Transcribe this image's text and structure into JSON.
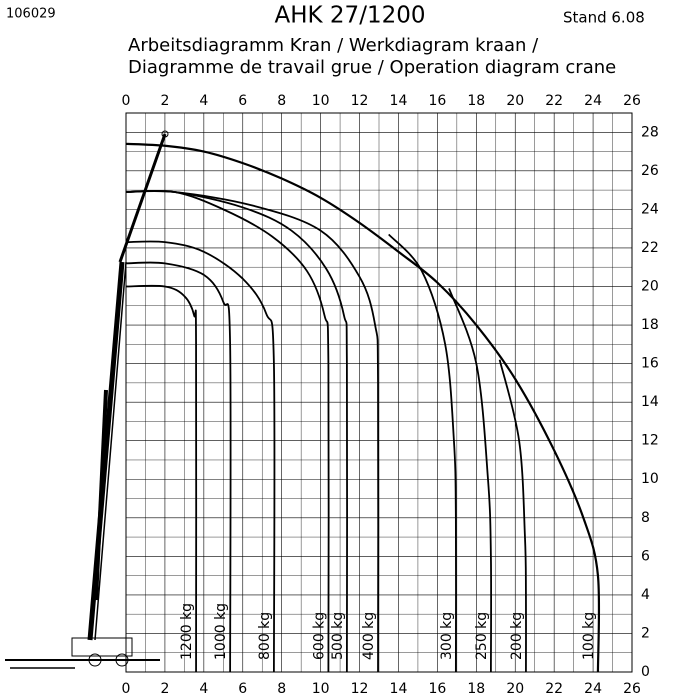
{
  "chart_data": {
    "type": "line",
    "code": "106029",
    "title": "AHK 27/1200",
    "stand": "Stand 6.08",
    "subtitle": [
      "Arbeitsdiagramm Kran / Werkdiagram kraan /",
      "Diagramme de travail grue / Operation diagram crane"
    ],
    "xlim": [
      0,
      26
    ],
    "ylim": [
      0,
      29
    ],
    "xticks": [
      0,
      2,
      4,
      6,
      8,
      10,
      12,
      14,
      16,
      18,
      20,
      22,
      24,
      26
    ],
    "yticks": [
      0,
      2,
      4,
      6,
      8,
      10,
      12,
      14,
      16,
      18,
      20,
      22,
      24,
      26,
      28
    ],
    "grid": true,
    "color": "#000000",
    "series": [
      {
        "name": "1200 kg",
        "x": [
          0,
          2,
          3,
          3.5,
          3.6,
          3.6
        ],
        "values": [
          20,
          20,
          19.5,
          18.5,
          17,
          0
        ]
      },
      {
        "name": "1000 kg",
        "x": [
          0,
          2,
          4,
          5,
          5.35,
          5.35
        ],
        "values": [
          21.2,
          21.2,
          20.6,
          19.2,
          17,
          0
        ]
      },
      {
        "name": "800 kg",
        "x": [
          0,
          2,
          4,
          6,
          7.2,
          7.6,
          7.6
        ],
        "values": [
          22.3,
          22.3,
          21.8,
          20.4,
          18.6,
          16,
          0
        ]
      },
      {
        "name": "600 kg",
        "x": [
          0,
          2.5,
          5,
          7.5,
          9.3,
          10.2,
          10.4,
          10.4
        ],
        "values": [
          24.9,
          24.9,
          24,
          22.6,
          20.8,
          18.5,
          16,
          0
        ]
      },
      {
        "name": "500 kg",
        "x": [
          0,
          2.5,
          6,
          8.5,
          10.3,
          11.2,
          11.35,
          11.35
        ],
        "values": [
          24.9,
          24.9,
          24.1,
          22.9,
          20.9,
          18.5,
          16,
          0
        ]
      },
      {
        "name": "400 kg",
        "x": [
          0,
          2.5,
          6.5,
          10,
          12,
          12.8,
          12.95,
          12.95
        ],
        "values": [
          24.9,
          24.9,
          24.2,
          22.9,
          20.5,
          18,
          15,
          0
        ]
      },
      {
        "name": "300 kg",
        "x": [
          13.5,
          15.2,
          16.4,
          16.85,
          16.95,
          16.95
        ],
        "values": [
          22.7,
          20.8,
          17,
          12,
          8,
          0
        ]
      },
      {
        "name": "250 kg",
        "x": [
          16.6,
          18,
          18.6,
          18.75,
          18.75
        ],
        "values": [
          19.9,
          16,
          10,
          6,
          0
        ]
      },
      {
        "name": "200 kg",
        "x": [
          19.2,
          20.2,
          20.5,
          20.55,
          20.55
        ],
        "values": [
          16.2,
          12,
          7,
          4,
          0
        ]
      },
      {
        "name": "100 kg",
        "x": [
          0,
          2,
          4,
          6,
          8,
          10,
          12,
          14,
          16,
          18,
          20,
          22,
          23.5,
          24.25,
          24.25
        ],
        "values": [
          27.4,
          27.3,
          27,
          26.4,
          25.6,
          24.6,
          23.3,
          21.8,
          20.2,
          18,
          15.2,
          11.5,
          8,
          5,
          0
        ]
      }
    ]
  }
}
